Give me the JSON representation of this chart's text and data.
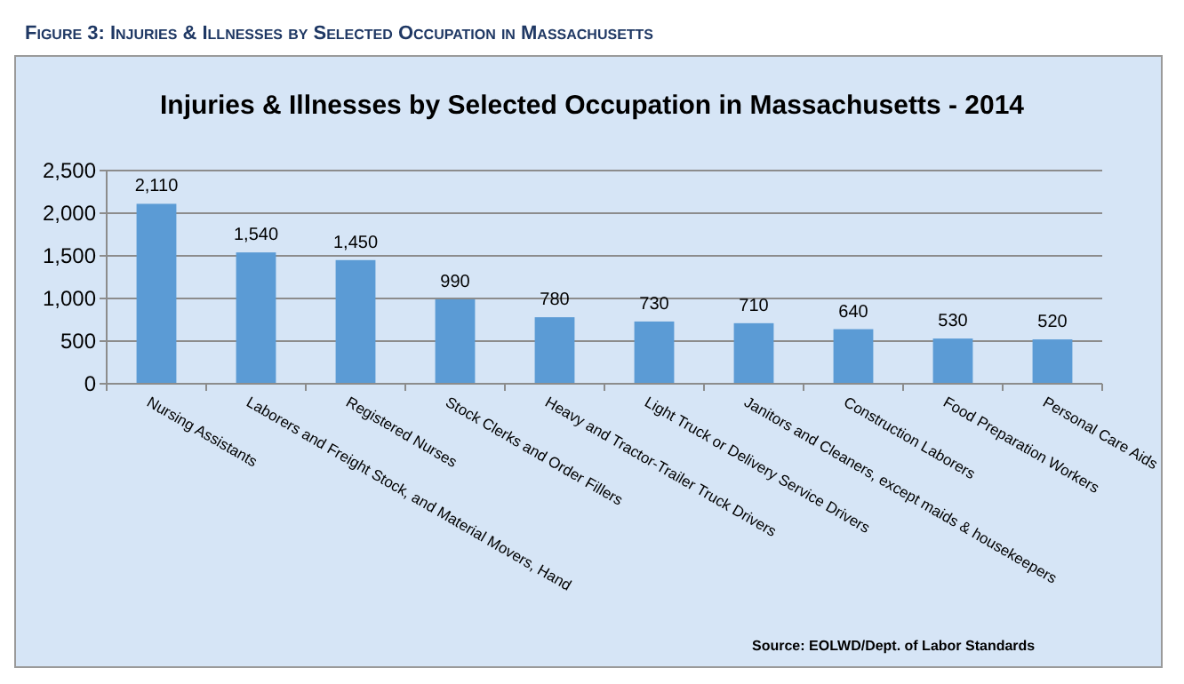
{
  "chart_data": {
    "type": "bar",
    "subtitle": "Figure 3:  Injuries & Illnesses by Selected Occupation in Massachusetts",
    "title": "Injuries & Illnesses by Selected Occupation in Massachusetts - 2014",
    "categories": [
      "Nursing Assistants",
      "Laborers and Freight Stock, and Material Movers, Hand",
      "Registered Nurses",
      "Stock Clerks and Order Fillers",
      "Heavy and Tractor-Trailer Truck Drivers",
      "Light Truck or Delivery Service Drivers",
      "Janitors and Cleaners, except maids & housekeepers",
      "Construction Laborers",
      "Food Preparation Workers",
      "Personal Care Aids"
    ],
    "values": [
      2110,
      1540,
      1450,
      990,
      780,
      730,
      710,
      640,
      530,
      520
    ],
    "color": "#5b9bd5",
    "ylim": [
      0,
      2500
    ],
    "yticks": [
      0,
      {
        "value": 500,
        "label": "500"
      },
      {
        "value": 1000,
        "label": "1,000"
      },
      {
        "value": 1500,
        "label": "1,500"
      },
      {
        "value": 2000,
        "label": "2,000"
      },
      {
        "value": 2500,
        "label": "2,500"
      }
    ],
    "grid": "y",
    "value_labels": [
      "2,110",
      "1,540",
      "1,450",
      "990",
      "780",
      "730",
      "710",
      "640",
      "530",
      "520"
    ],
    "annotations": [
      "Source:  EOLWD/Dept. of Labor Standards"
    ]
  }
}
